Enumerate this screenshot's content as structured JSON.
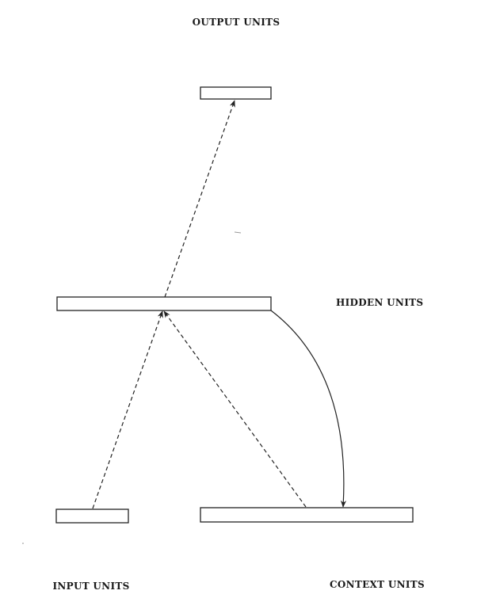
{
  "labels": {
    "output": "OUTPUT UNITS",
    "hidden": "HIDDEN UNITS",
    "input": "INPUT UNITS",
    "context": "CONTEXT UNITS"
  },
  "connections": [
    {
      "from": "input",
      "to": "hidden",
      "style": "dashed"
    },
    {
      "from": "context",
      "to": "hidden",
      "style": "dashed"
    },
    {
      "from": "hidden",
      "to": "output",
      "style": "dashed"
    },
    {
      "from": "hidden",
      "to": "context",
      "style": "solid"
    }
  ]
}
